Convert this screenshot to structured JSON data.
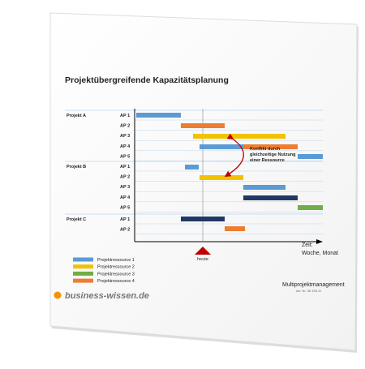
{
  "header": {
    "title": "Projektübergreifende Kapazitätsplanung"
  },
  "projects": [
    {
      "label": "Projekt A",
      "rows": [
        "AP 1",
        "AP 2",
        "AP 3",
        "AP 4",
        "AP 5"
      ]
    },
    {
      "label": "Projekt B",
      "rows": [
        "AP 1",
        "AP 2",
        "AP 3",
        "AP 4",
        "AP 5"
      ]
    },
    {
      "label": "Projekt C",
      "rows": [
        "AP 1",
        "AP 2"
      ]
    }
  ],
  "annotation": [
    "Konflikt durch",
    "gleichzeitige Nutzung",
    "einer Ressource"
  ],
  "today": "heute",
  "time_axis": [
    "Zeit:",
    "Woche, Monat"
  ],
  "legend": [
    "Projektressource 1",
    "Projektressource 2",
    "Projektressource 3",
    "Projektressource 4"
  ],
  "footer": {
    "logo": "business-wissen.de",
    "product": "Multiprojektmanagement",
    "article": "Art. Nr. 36 199.11"
  }
}
